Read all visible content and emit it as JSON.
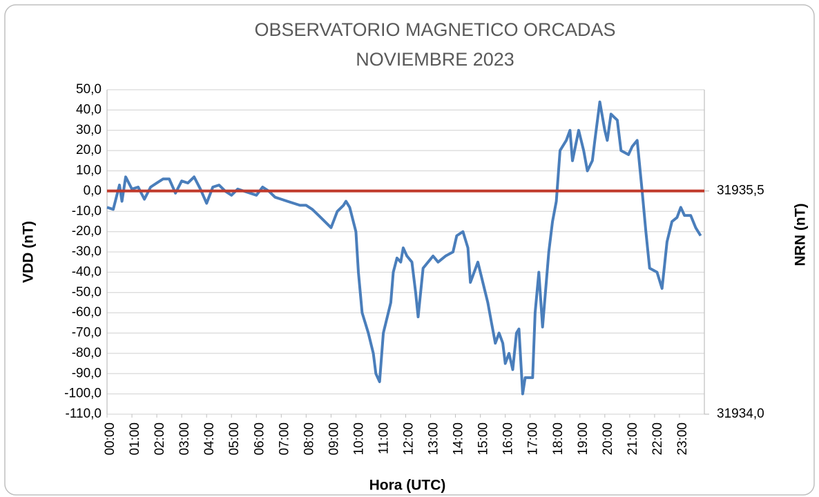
{
  "chart_data": {
    "type": "line",
    "title": "OBSERVATORIO MAGNETICO ORCADAS",
    "subtitle": "NOVIEMBRE 2023",
    "x_label": "Hora (UTC)",
    "y_label": "VDD (nT)",
    "y2_label": "NRN (nT)",
    "xlim": [
      0,
      24
    ],
    "xticks": [
      {
        "value": 0,
        "label": "00:00"
      },
      {
        "value": 1,
        "label": "01:00"
      },
      {
        "value": 2,
        "label": "02:00"
      },
      {
        "value": 3,
        "label": "03:00"
      },
      {
        "value": 4,
        "label": "04:00"
      },
      {
        "value": 5,
        "label": "05:00"
      },
      {
        "value": 6,
        "label": "06:00"
      },
      {
        "value": 7,
        "label": "07:00"
      },
      {
        "value": 8,
        "label": "08:00"
      },
      {
        "value": 9,
        "label": "09:00"
      },
      {
        "value": 10,
        "label": "10:00"
      },
      {
        "value": 11,
        "label": "11:00"
      },
      {
        "value": 12,
        "label": "12:00"
      },
      {
        "value": 13,
        "label": "13:00"
      },
      {
        "value": 14,
        "label": "14:00"
      },
      {
        "value": 15,
        "label": "15:00"
      },
      {
        "value": 16,
        "label": "16:00"
      },
      {
        "value": 17,
        "label": "17:00"
      },
      {
        "value": 18,
        "label": "18:00"
      },
      {
        "value": 19,
        "label": "19:00"
      },
      {
        "value": 20,
        "label": "20:00"
      },
      {
        "value": 21,
        "label": "21:00"
      },
      {
        "value": 22,
        "label": "22:00"
      },
      {
        "value": 23,
        "label": "23:00"
      }
    ],
    "ylim": [
      -110,
      50
    ],
    "yticks": [
      {
        "value": 50,
        "label": "50,0"
      },
      {
        "value": 40,
        "label": "40,0"
      },
      {
        "value": 30,
        "label": "30,0"
      },
      {
        "value": 20,
        "label": "20,0"
      },
      {
        "value": 10,
        "label": "10,0"
      },
      {
        "value": 0,
        "label": "0,0"
      },
      {
        "value": -10,
        "label": "-10,0"
      },
      {
        "value": -20,
        "label": "-20,0"
      },
      {
        "value": -30,
        "label": "-30,0"
      },
      {
        "value": -40,
        "label": "-40,0"
      },
      {
        "value": -50,
        "label": "-50,0"
      },
      {
        "value": -60,
        "label": "-60,0"
      },
      {
        "value": -70,
        "label": "-70,0"
      },
      {
        "value": -80,
        "label": "-80,0"
      },
      {
        "value": -90,
        "label": "-90,0"
      },
      {
        "value": -100,
        "label": "-100,0"
      },
      {
        "value": -110,
        "label": "-110,0"
      }
    ],
    "y2lim": [
      31934.0,
      31936.18
    ],
    "y2ticks": [
      {
        "value": 31935.5,
        "label": "31935,5"
      },
      {
        "value": 31934.0,
        "label": "31934,0"
      }
    ],
    "grid": true,
    "series": [
      {
        "color": "#4a7ebb",
        "x": [
          0,
          0.25,
          0.5,
          0.6,
          0.75,
          1,
          1.25,
          1.5,
          1.75,
          2,
          2.25,
          2.5,
          2.75,
          3,
          3.25,
          3.5,
          3.75,
          4,
          4.25,
          4.5,
          4.75,
          5,
          5.25,
          5.5,
          5.75,
          6,
          6.25,
          6.5,
          6.75,
          7,
          7.25,
          7.5,
          7.75,
          8,
          8.25,
          8.5,
          8.75,
          9,
          9.25,
          9.5,
          9.6,
          9.75,
          10,
          10.1,
          10.25,
          10.5,
          10.7,
          10.8,
          10.95,
          11.1,
          11.4,
          11.5,
          11.65,
          11.8,
          11.9,
          12.05,
          12.25,
          12.4,
          12.5,
          12.7,
          12.9,
          13.1,
          13.3,
          13.6,
          13.9,
          14.05,
          14.3,
          14.5,
          14.6,
          14.75,
          14.9,
          15,
          15.1,
          15.3,
          15.45,
          15.6,
          15.75,
          15.9,
          16,
          16.15,
          16.3,
          16.45,
          16.55,
          16.7,
          16.8,
          17.1,
          17.2,
          17.35,
          17.5,
          17.75,
          17.9,
          18.05,
          18.2,
          18.45,
          18.6,
          18.7,
          18.95,
          19.15,
          19.3,
          19.5,
          19.6,
          19.8,
          20,
          20.1,
          20.25,
          20.5,
          20.65,
          20.95,
          21.1,
          21.3,
          21.5,
          21.65,
          21.8,
          22.1,
          22.3,
          22.5,
          22.7,
          22.9,
          23.05,
          23.2,
          23.45,
          23.65,
          23.85
        ],
        "values": [
          -8,
          -9,
          3,
          -5,
          7,
          1,
          2,
          -4,
          2,
          4,
          6,
          6,
          -1,
          5,
          4,
          7,
          1,
          -6,
          2,
          3,
          0,
          -2,
          1,
          0,
          -1,
          -2,
          2,
          0,
          -3,
          -4,
          -5,
          -6,
          -7,
          -7,
          -9,
          -12,
          -15,
          -18,
          -10,
          -7,
          -5,
          -8,
          -20,
          -40,
          -60,
          -70,
          -80,
          -90,
          -94,
          -70,
          -55,
          -40,
          -33,
          -35,
          -28,
          -32,
          -35,
          -50,
          -62,
          -38,
          -35,
          -32,
          -35,
          -32,
          -30,
          -22,
          -20,
          -28,
          -45,
          -40,
          -35,
          -40,
          -45,
          -55,
          -65,
          -75,
          -70,
          -75,
          -85,
          -80,
          -88,
          -70,
          -68,
          -100,
          -92,
          -92,
          -60,
          -40,
          -67,
          -30,
          -15,
          -5,
          20,
          25,
          30,
          15,
          30,
          20,
          10,
          15,
          25,
          44,
          30,
          25,
          38,
          35,
          20,
          18,
          22,
          25,
          0,
          -20,
          -38,
          -40,
          -48,
          -25,
          -15,
          -13,
          -8,
          -12,
          -12,
          -18,
          -22
        ]
      },
      {
        "color": "#c0392b",
        "axis": "y2",
        "x": [
          0,
          24
        ],
        "values": [
          31935.5,
          31935.5
        ]
      }
    ]
  }
}
